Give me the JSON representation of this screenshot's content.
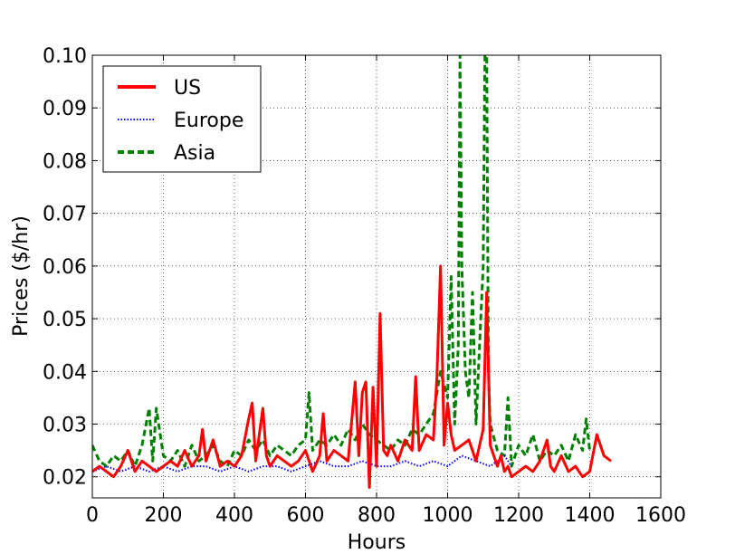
{
  "chart_data": {
    "type": "line",
    "xlabel": "Hours",
    "ylabel": "Prices ($/hr)",
    "xlim": [
      0,
      1600
    ],
    "ylim": [
      0.016,
      0.1
    ],
    "xticks": [
      0,
      200,
      400,
      600,
      800,
      1000,
      1200,
      1400,
      1600
    ],
    "yticks": [
      0.02,
      0.03,
      0.04,
      0.05,
      0.06,
      0.07,
      0.08,
      0.09,
      0.1
    ],
    "xtick_labels": [
      "0",
      "200",
      "400",
      "600",
      "800",
      "1000",
      "1200",
      "1400",
      "1600"
    ],
    "ytick_labels": [
      "0.02",
      "0.03",
      "0.04",
      "0.05",
      "0.06",
      "0.07",
      "0.08",
      "0.09",
      "0.10"
    ],
    "grid": true,
    "legend_position": "top-left",
    "series": [
      {
        "name": "US",
        "color": "#ff0000",
        "style": "solid",
        "x": [
          0,
          20,
          40,
          60,
          80,
          100,
          120,
          140,
          160,
          180,
          200,
          220,
          240,
          260,
          280,
          300,
          310,
          320,
          340,
          360,
          380,
          400,
          420,
          440,
          450,
          460,
          480,
          490,
          500,
          520,
          540,
          560,
          580,
          600,
          620,
          640,
          650,
          660,
          680,
          700,
          720,
          740,
          750,
          760,
          770,
          780,
          790,
          800,
          810,
          820,
          830,
          840,
          860,
          880,
          900,
          910,
          920,
          940,
          960,
          970,
          980,
          990,
          1000,
          1010,
          1020,
          1040,
          1060,
          1080,
          1100,
          1110,
          1120,
          1130,
          1140,
          1150,
          1160,
          1170,
          1180,
          1200,
          1220,
          1240,
          1260,
          1280,
          1290,
          1300,
          1320,
          1340,
          1360,
          1380,
          1400,
          1420,
          1440,
          1460
        ],
        "y": [
          0.021,
          0.022,
          0.021,
          0.02,
          0.022,
          0.025,
          0.021,
          0.023,
          0.022,
          0.021,
          0.022,
          0.023,
          0.022,
          0.025,
          0.022,
          0.024,
          0.029,
          0.023,
          0.027,
          0.022,
          0.023,
          0.022,
          0.024,
          0.031,
          0.034,
          0.023,
          0.033,
          0.024,
          0.022,
          0.024,
          0.023,
          0.022,
          0.023,
          0.025,
          0.021,
          0.024,
          0.032,
          0.023,
          0.025,
          0.024,
          0.023,
          0.038,
          0.024,
          0.036,
          0.038,
          0.018,
          0.037,
          0.022,
          0.051,
          0.025,
          0.024,
          0.026,
          0.023,
          0.027,
          0.025,
          0.039,
          0.025,
          0.028,
          0.027,
          0.039,
          0.06,
          0.026,
          0.034,
          0.028,
          0.025,
          0.026,
          0.027,
          0.023,
          0.029,
          0.055,
          0.026,
          0.024,
          0.022,
          0.024,
          0.021,
          0.022,
          0.02,
          0.021,
          0.022,
          0.021,
          0.023,
          0.027,
          0.022,
          0.021,
          0.024,
          0.021,
          0.022,
          0.02,
          0.021,
          0.028,
          0.024,
          0.023
        ]
      },
      {
        "name": "Europe",
        "color": "#0000ff",
        "style": "dotted",
        "x": [
          0,
          40,
          80,
          120,
          160,
          200,
          240,
          280,
          320,
          360,
          400,
          440,
          480,
          520,
          560,
          600,
          640,
          680,
          720,
          760,
          800,
          840,
          880,
          920,
          960,
          1000,
          1040,
          1080,
          1120,
          1160,
          1180
        ],
        "y": [
          0.021,
          0.022,
          0.021,
          0.022,
          0.021,
          0.022,
          0.021,
          0.022,
          0.022,
          0.021,
          0.022,
          0.021,
          0.022,
          0.022,
          0.021,
          0.022,
          0.023,
          0.022,
          0.022,
          0.023,
          0.022,
          0.022,
          0.023,
          0.022,
          0.023,
          0.022,
          0.024,
          0.023,
          0.022,
          0.024,
          0.022
        ]
      },
      {
        "name": "Asia",
        "color": "#008000",
        "style": "dashed",
        "x": [
          0,
          20,
          40,
          60,
          80,
          100,
          120,
          140,
          160,
          170,
          180,
          200,
          220,
          240,
          260,
          280,
          300,
          320,
          340,
          360,
          380,
          400,
          420,
          440,
          460,
          480,
          500,
          520,
          540,
          560,
          580,
          600,
          610,
          620,
          640,
          660,
          680,
          700,
          720,
          740,
          760,
          780,
          800,
          820,
          840,
          860,
          880,
          900,
          920,
          940,
          960,
          980,
          1000,
          1010,
          1020,
          1030,
          1035,
          1040,
          1050,
          1060,
          1070,
          1080,
          1090,
          1100,
          1105,
          1110,
          1115,
          1120,
          1140,
          1160,
          1170,
          1180,
          1200,
          1220,
          1240,
          1260,
          1280,
          1300,
          1320,
          1340,
          1360,
          1380,
          1390,
          1400
        ],
        "y": [
          0.026,
          0.023,
          0.022,
          0.024,
          0.023,
          0.025,
          0.022,
          0.026,
          0.033,
          0.023,
          0.033,
          0.024,
          0.023,
          0.025,
          0.022,
          0.026,
          0.023,
          0.024,
          0.026,
          0.023,
          0.022,
          0.025,
          0.024,
          0.027,
          0.025,
          0.027,
          0.024,
          0.026,
          0.025,
          0.024,
          0.026,
          0.027,
          0.036,
          0.025,
          0.027,
          0.026,
          0.028,
          0.026,
          0.029,
          0.027,
          0.03,
          0.028,
          0.027,
          0.026,
          0.025,
          0.027,
          0.026,
          0.029,
          0.028,
          0.03,
          0.032,
          0.04,
          0.035,
          0.058,
          0.03,
          0.045,
          0.1,
          0.06,
          0.04,
          0.035,
          0.055,
          0.03,
          0.045,
          0.06,
          0.1,
          0.1,
          0.04,
          0.03,
          0.025,
          0.024,
          0.035,
          0.022,
          0.026,
          0.024,
          0.028,
          0.023,
          0.025,
          0.024,
          0.026,
          0.023,
          0.028,
          0.025,
          0.031,
          0.025
        ]
      }
    ]
  }
}
